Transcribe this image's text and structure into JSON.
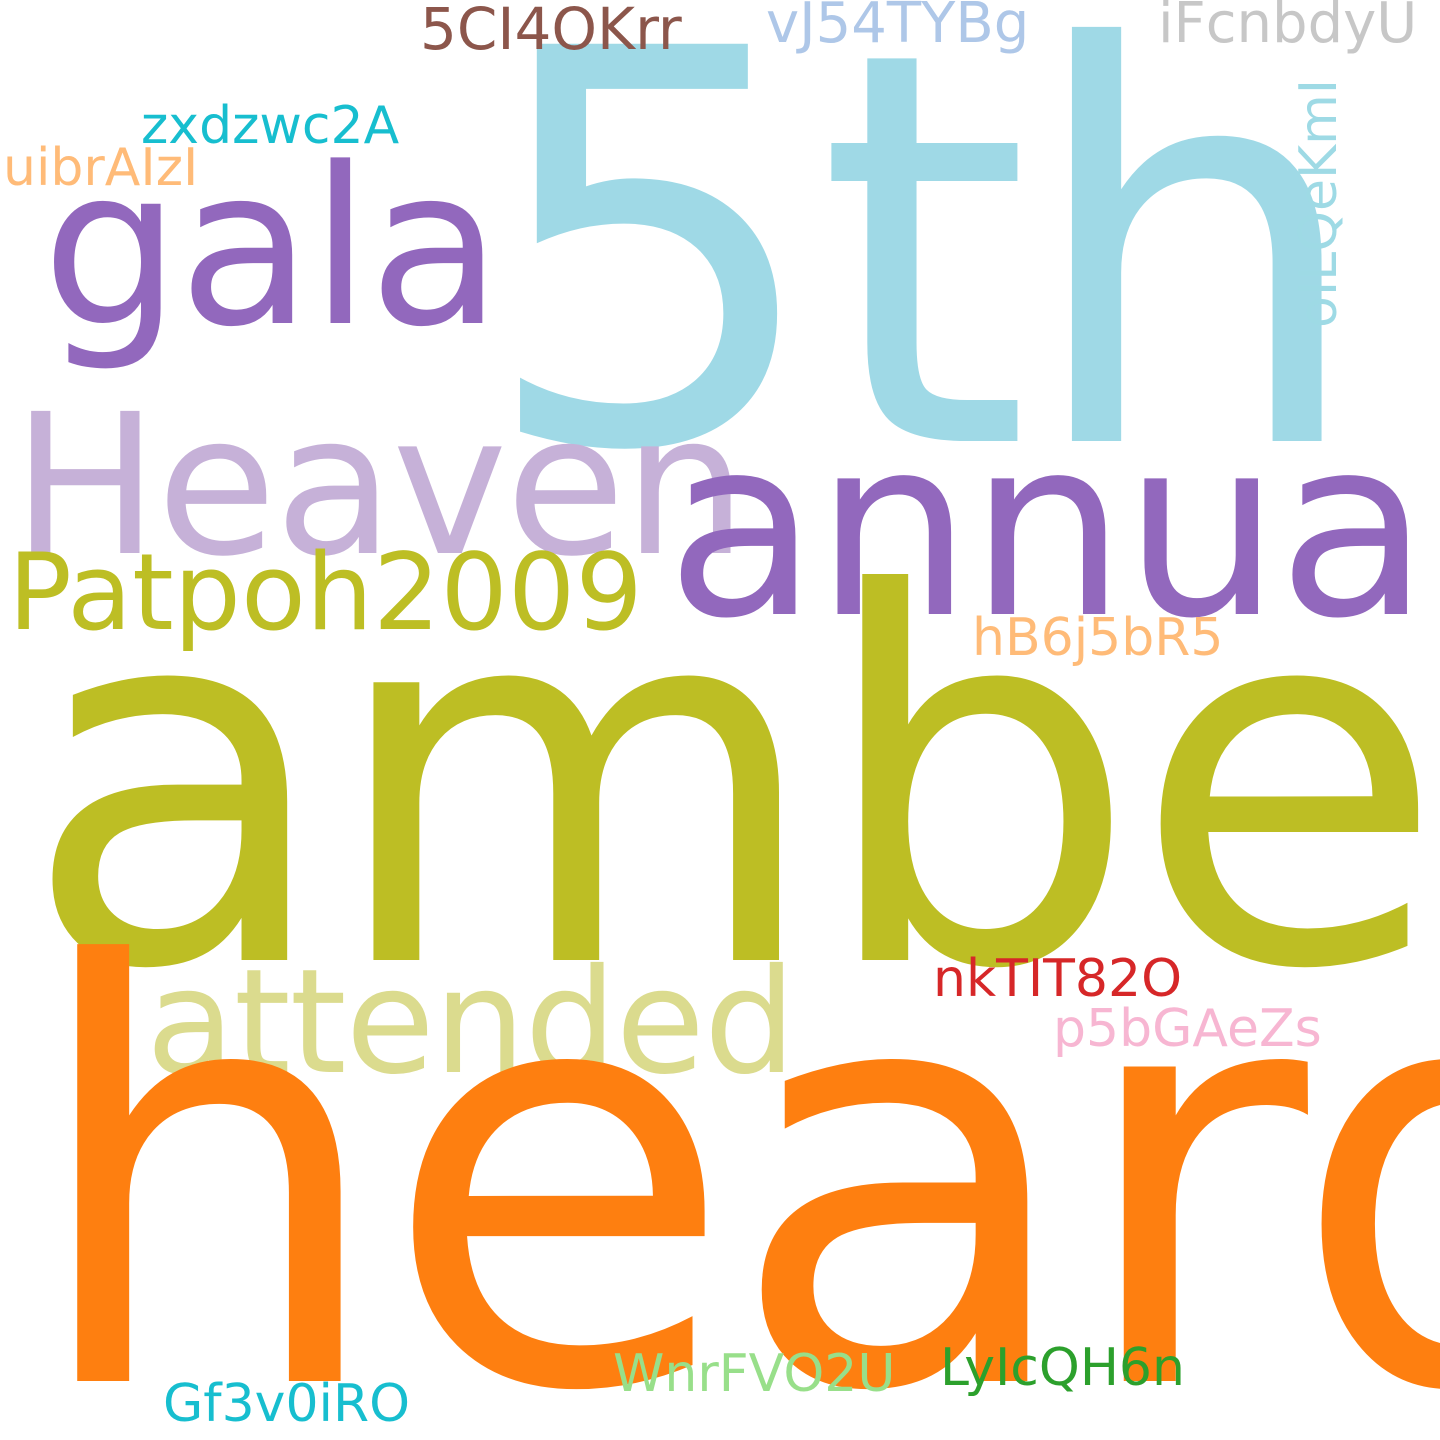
{
  "cloud": {
    "background": "#ffffff",
    "words": {
      "fifth": {
        "text": "5th",
        "color": "#9fd9e6"
      },
      "amber": {
        "text": "amber",
        "color": "#bdbe24"
      },
      "heard": {
        "text": "heard",
        "color": "#fe7f10"
      },
      "annual": {
        "text": "annual",
        "color": "#9268bd"
      },
      "heaven": {
        "text": "Heaven",
        "color": "#c6b1d8"
      },
      "gala": {
        "text": "gala",
        "color": "#9268bd"
      },
      "attended": {
        "text": "attended",
        "color": "#dbdb8e"
      },
      "patpoh": {
        "text": "Patpoh2009",
        "color": "#bdbe24"
      },
      "fiveci": {
        "text": "5CI4OKrr",
        "color": "#8c564b"
      },
      "vj54": {
        "text": "vJ54TYBg",
        "color": "#aec7e8"
      },
      "ifcn": {
        "text": "iFcnbdyU",
        "color": "#c7c7c7"
      },
      "zxdz": {
        "text": "zxdzwc2A",
        "color": "#17becf"
      },
      "uibr": {
        "text": "uibrAIzI",
        "color": "#ffbb78"
      },
      "oilq": {
        "text": "oILQeKmI",
        "color": "#9edae5"
      },
      "hb6j": {
        "text": "hB6j5bR5",
        "color": "#ffbb78"
      },
      "nktit": {
        "text": "nkTIT82O",
        "color": "#d62728"
      },
      "p5bg": {
        "text": "p5bGAeZs",
        "color": "#f7b6d2"
      },
      "wnrf": {
        "text": "WnrFVO2U",
        "color": "#98df8a"
      },
      "lyic": {
        "text": "LyIcQH6n",
        "color": "#2ca02c"
      },
      "gf3v": {
        "text": "Gf3v0iRO",
        "color": "#17becf"
      }
    }
  }
}
